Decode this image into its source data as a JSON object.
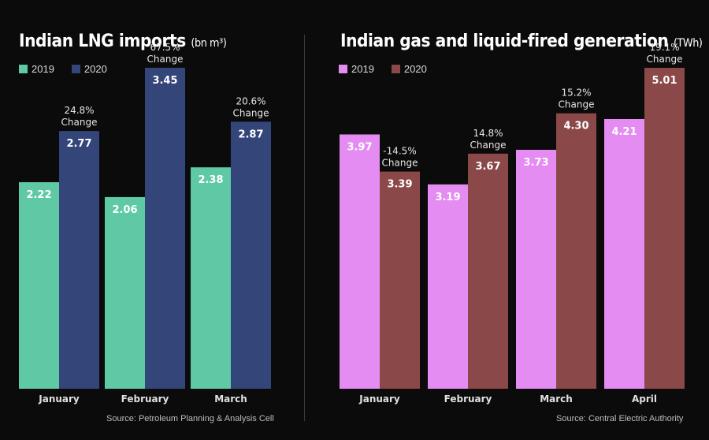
{
  "chart_data": [
    {
      "type": "bar",
      "title": "Indian LNG imports",
      "unit": "(bn m³)",
      "categories": [
        "January",
        "February",
        "March"
      ],
      "series": [
        {
          "name": "2019",
          "values": [
            2.22,
            2.06,
            2.38
          ],
          "color": "#5ec9a4"
        },
        {
          "name": "2020",
          "values": [
            2.77,
            3.45,
            2.87
          ],
          "color": "#34457a"
        }
      ],
      "changes": [
        {
          "pct": "24.8%",
          "word": "Change"
        },
        {
          "pct": "67.5%",
          "word": "Change"
        },
        {
          "pct": "20.6%",
          "word": "Change"
        }
      ],
      "ylim": [
        0,
        3.67
      ],
      "source": "Source: Petroleum Planning & Analysis Cell"
    },
    {
      "type": "bar",
      "title": "Indian gas and liquid-fired generation",
      "unit": "(TWh)",
      "categories": [
        "January",
        "February",
        "March",
        "April"
      ],
      "series": [
        {
          "name": "2019",
          "values": [
            3.97,
            3.19,
            3.73,
            4.21
          ],
          "color": "#e48cf2"
        },
        {
          "name": "2020",
          "values": [
            3.39,
            3.67,
            4.3,
            5.01
          ],
          "color": "#8b4848"
        }
      ],
      "changes": [
        {
          "pct": "-14.5%",
          "word": "Change"
        },
        {
          "pct": "14.8%",
          "word": "Change"
        },
        {
          "pct": "15.2%",
          "word": "Change"
        },
        {
          "pct": "19.1%",
          "word": "Change"
        }
      ],
      "ylim": [
        0,
        5.33
      ],
      "source": "Source: Central Electric Authority"
    }
  ]
}
